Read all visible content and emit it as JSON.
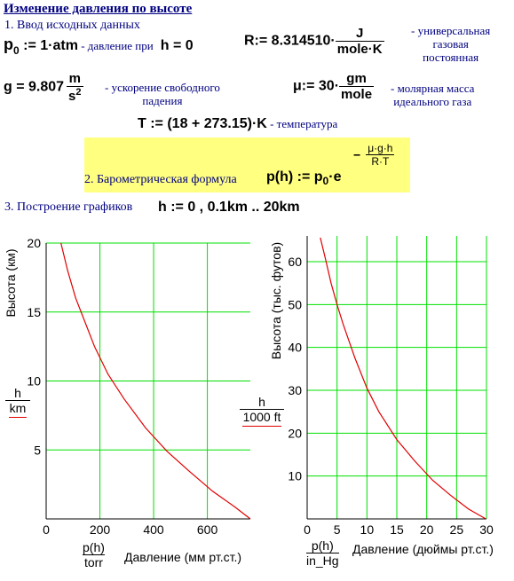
{
  "header": {
    "title": "Изменение давления по высоте",
    "section1": "1. Ввод исходных данных"
  },
  "p0": {
    "lhs": "p",
    "sub": "0",
    "assign": " := 1·atm",
    "comment": " - давление при",
    "cond": "h = 0"
  },
  "R": {
    "lhs": "R:= 8.314510·",
    "num": "J",
    "den": "mole·K",
    "comment_lines": [
      "- универсальная",
      "газовая",
      "постоянная"
    ]
  },
  "g": {
    "lhs": "g = 9.807",
    "num": "m",
    "den": "s",
    "den_sup": "2",
    "comment_lines": [
      "- ускорение свободного",
      "падения"
    ]
  },
  "mu": {
    "lhs": "μ:= 30·",
    "num": "gm",
    "den": "mole",
    "comment_lines": [
      "- молярная масса",
      "идеального газа"
    ]
  },
  "T": {
    "expr": "T := (18 + 273.15)·K",
    "comment": " - температура"
  },
  "formula": {
    "label": "2. Барометрическая формула",
    "expr": "p(h) := p",
    "sub": "0",
    "e": "·e",
    "exp_sign": "−",
    "exp_num": "μ·g·h",
    "exp_den": "R·T"
  },
  "section3": {
    "label": "3. Построение графиков",
    "range": "h := 0 , 0.1km .. 20km"
  },
  "chart1": {
    "ylabel": "Высота (км)",
    "y_unit_num": "h",
    "y_unit_den": "km",
    "x_unit_num": "p(h)",
    "x_unit_den": "torr",
    "xlabel": "Давление (мм рт.ст.)",
    "xticks": [
      "0",
      "200",
      "400",
      "600"
    ],
    "yticks": [
      "5",
      "10",
      "15",
      "20"
    ]
  },
  "chart2": {
    "ylabel": "Высота (тыс. футов)",
    "y_unit_num": "h",
    "y_unit_den": "1000 ft",
    "x_unit_num": "p(h)",
    "x_unit_den": "in_Hg",
    "xlabel": "Давление (дюймы рт.ст.)",
    "xticks": [
      "0",
      "5",
      "10",
      "15",
      "20",
      "25",
      "30"
    ],
    "yticks": [
      "10",
      "20",
      "30",
      "40",
      "50",
      "60"
    ]
  },
  "colors": {
    "navy": "#000080",
    "grid": "#00e000",
    "curve": "#e00000",
    "highlight": "#ffff80"
  },
  "chart_data": [
    {
      "type": "line",
      "title": "",
      "xlabel": "Давление (мм рт.ст.)",
      "ylabel": "Высота (км)",
      "xlim": [
        0,
        760
      ],
      "ylim": [
        0,
        20
      ],
      "grid": true,
      "series": [
        {
          "x": [
            55,
            80,
            110,
            140,
            180,
            230,
            290,
            370,
            450,
            530,
            620,
            700,
            760
          ],
          "y": [
            20,
            18,
            16,
            14.5,
            12.5,
            10.5,
            8.7,
            6.6,
            4.9,
            3.5,
            2,
            0.9,
            0
          ]
        }
      ]
    },
    {
      "type": "line",
      "title": "",
      "xlabel": "Давление (дюймы рт.ст.)",
      "ylabel": "Высота (тыс. футов)",
      "xlim": [
        0,
        30
      ],
      "ylim": [
        0,
        66
      ],
      "grid": true,
      "series": [
        {
          "x": [
            2.2,
            3,
            4,
            5,
            6,
            8,
            10,
            12,
            15,
            18,
            21,
            24,
            27,
            29.9
          ],
          "y": [
            65.6,
            61,
            55,
            50,
            45.5,
            37.5,
            30.5,
            25,
            18.5,
            13.5,
            9,
            5.5,
            2.3,
            0
          ]
        }
      ]
    }
  ]
}
